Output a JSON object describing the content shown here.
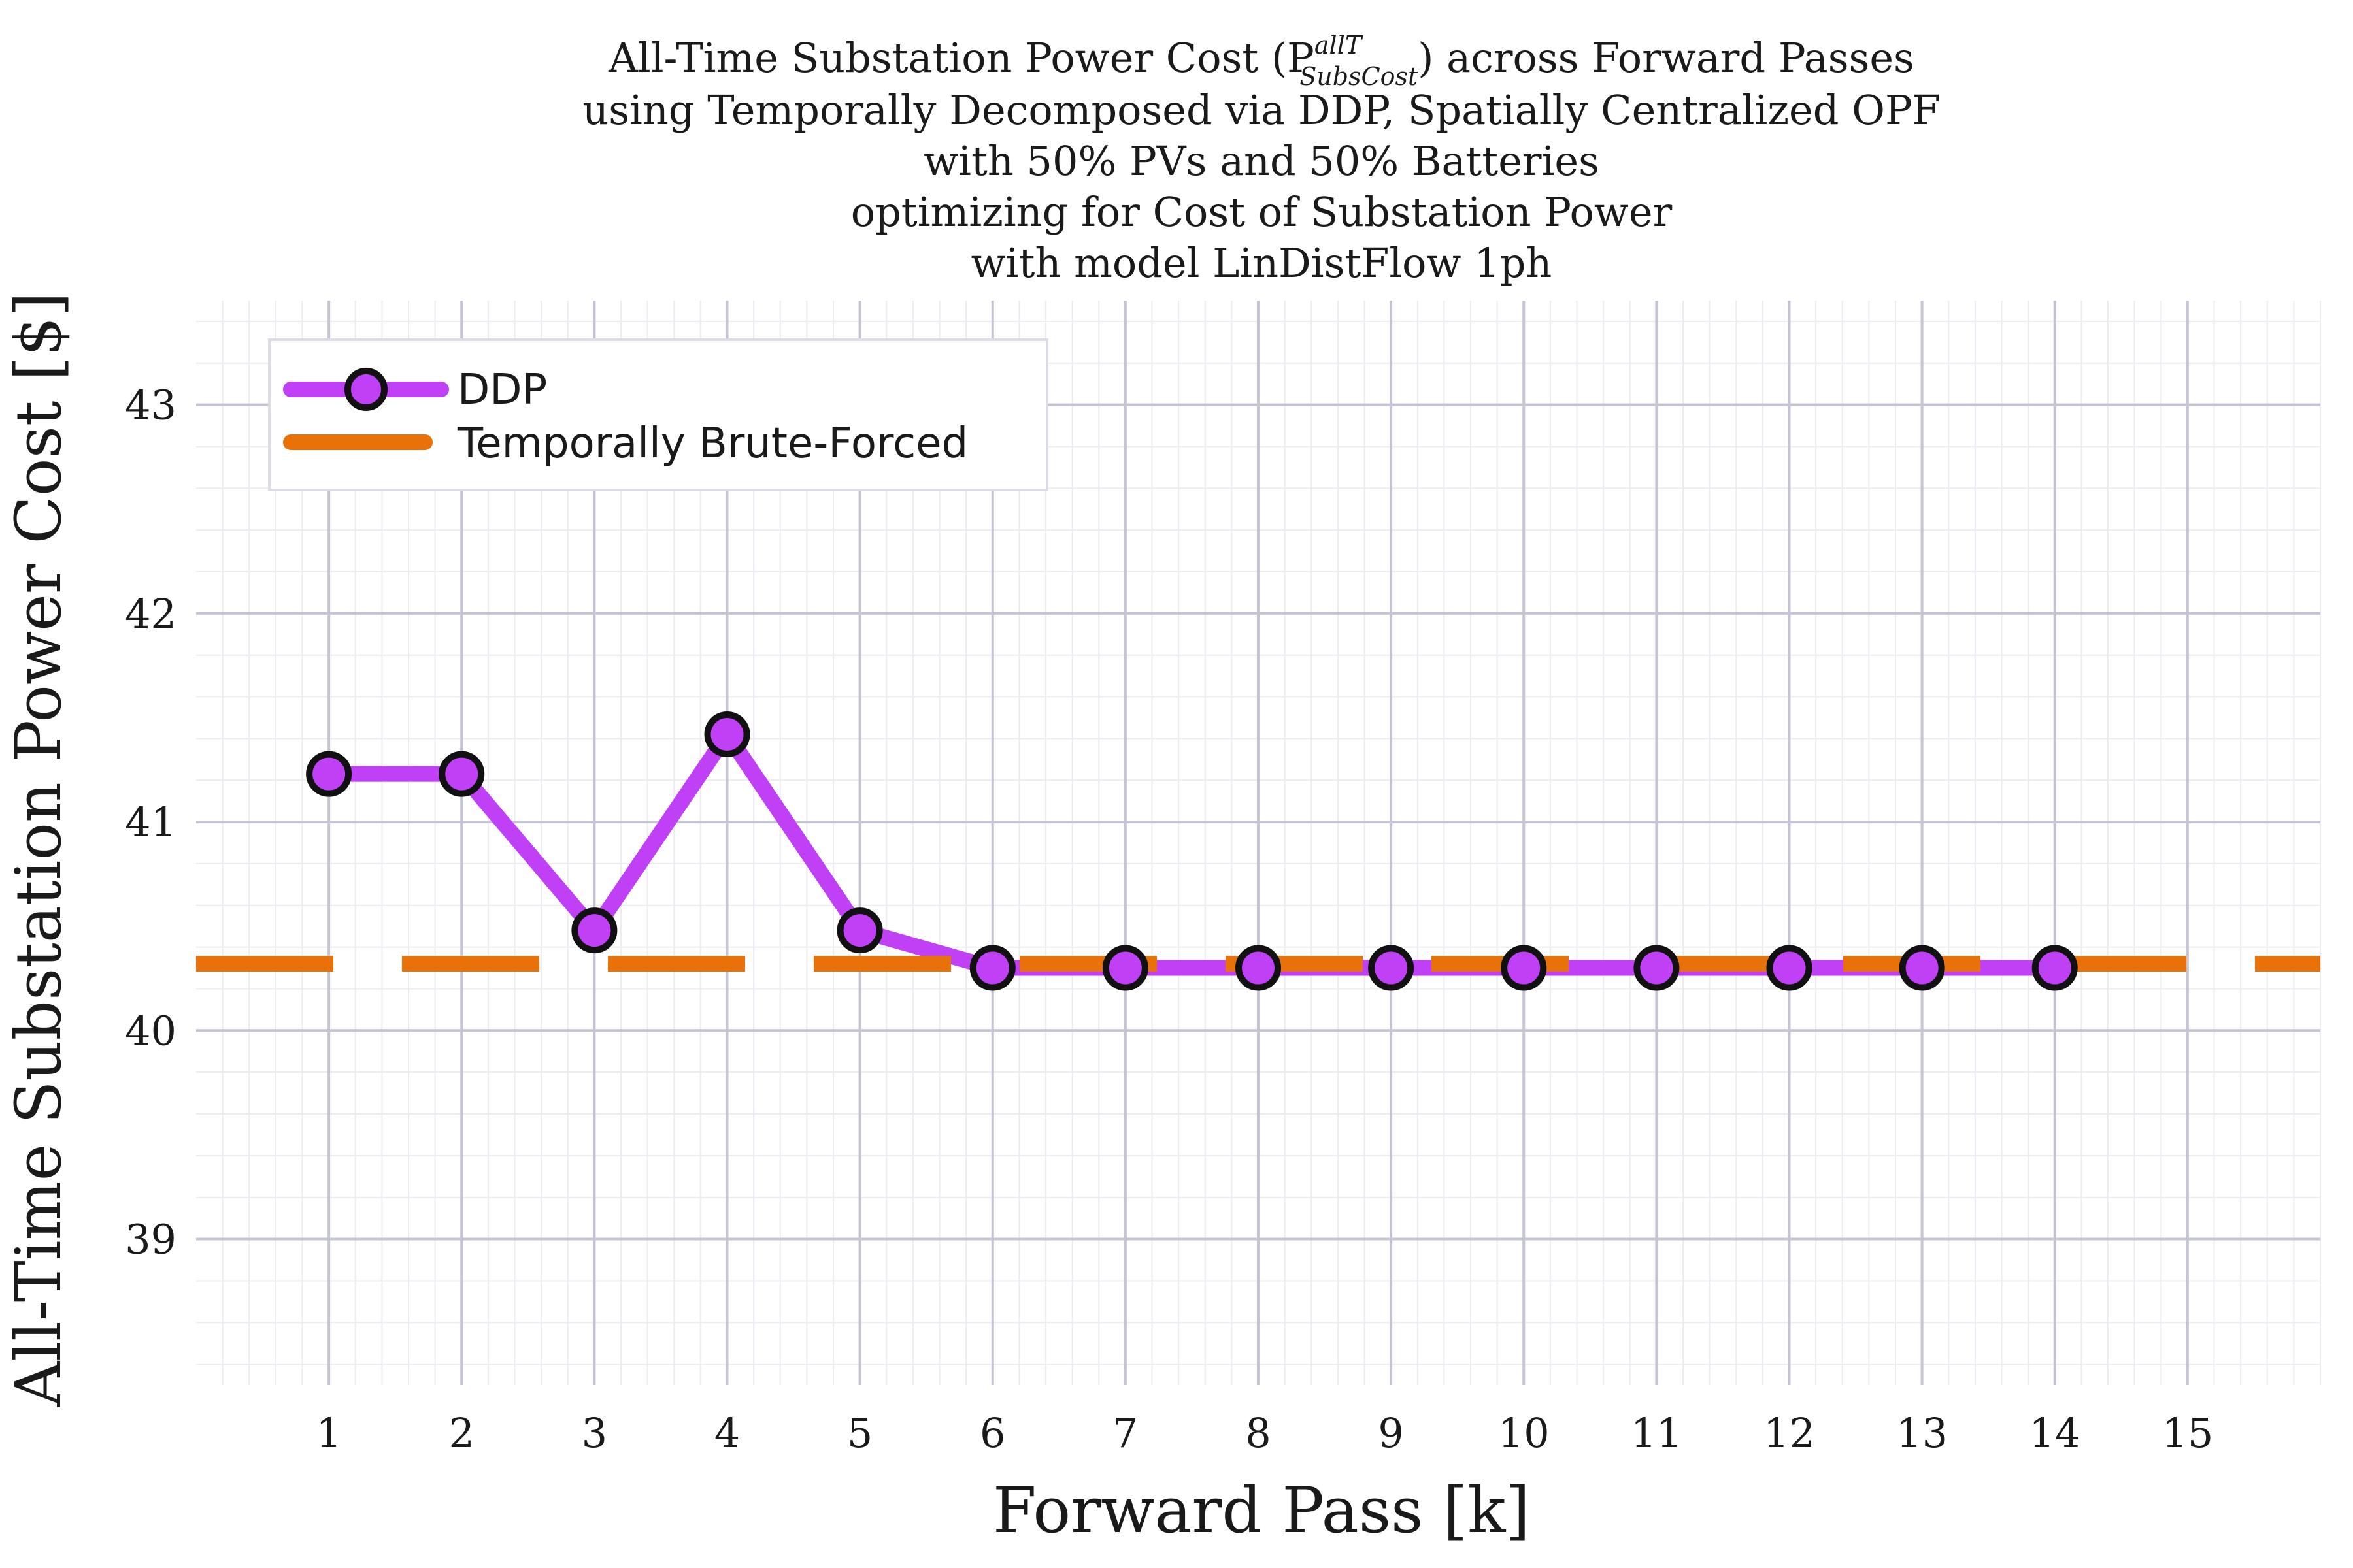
{
  "chart_data": {
    "type": "line",
    "title_lines": [
      "All-Time Substation Power Cost (P",
      "using Temporally Decomposed via DDP, Spatially Centralized OPF",
      "with 50% PVs and 50% Batteries",
      "optimizing for Cost of Substation Power",
      "with model LinDistFlow 1ph"
    ],
    "title_symbol_sup": "allT",
    "title_symbol_sub": "SubsCost",
    "title_line1_suffix": ") across Forward Passes",
    "xlabel": "Forward Pass [k]",
    "ylabel": "All-Time Substation Power Cost [$]",
    "xlim": [
      0,
      16
    ],
    "ylim": [
      38.3,
      43.5
    ],
    "xticks": [
      1,
      2,
      3,
      4,
      5,
      6,
      7,
      8,
      9,
      10,
      11,
      12,
      13,
      14,
      15
    ],
    "yticks": [
      39,
      40,
      41,
      42,
      43
    ],
    "grid": true,
    "legend_position": "top-left",
    "series": [
      {
        "name": "DDP",
        "style": "solid-with-markers",
        "color": "#bf40f5",
        "x": [
          1,
          2,
          3,
          4,
          5,
          6,
          7,
          8,
          9,
          10,
          11,
          12,
          13,
          14
        ],
        "y": [
          41.23,
          41.23,
          40.48,
          41.42,
          40.48,
          40.3,
          40.3,
          40.3,
          40.3,
          40.3,
          40.3,
          40.3,
          40.3,
          40.3
        ]
      },
      {
        "name": "Temporally Brute-Forced",
        "style": "dashed",
        "color": "#e8710a",
        "constant_y": 40.32
      }
    ]
  }
}
